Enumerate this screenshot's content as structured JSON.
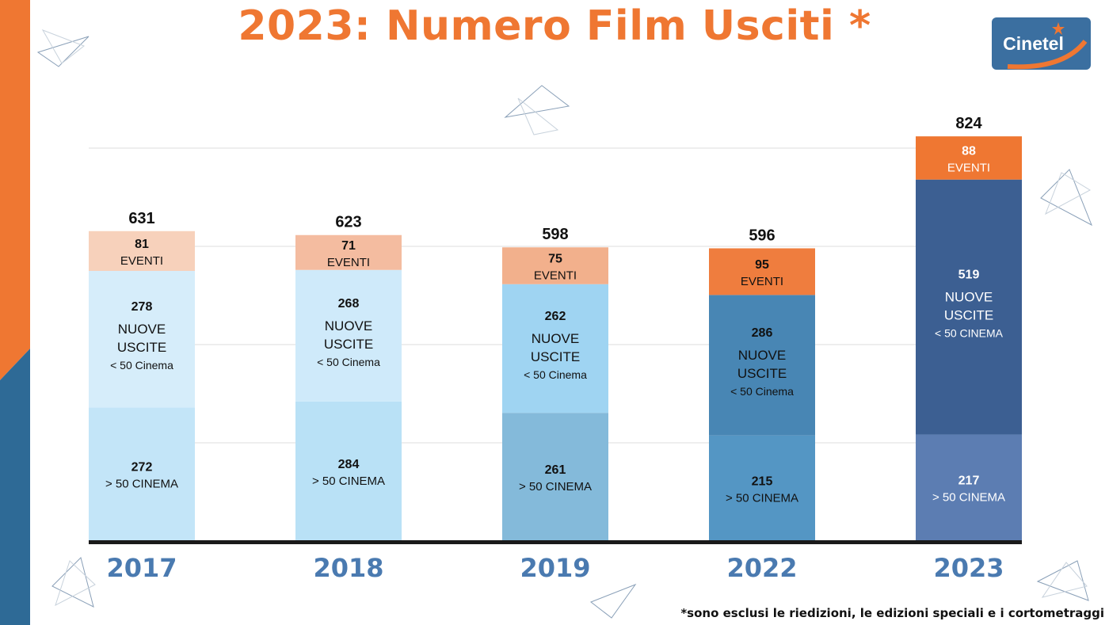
{
  "title": "2023: Numero Film Usciti *",
  "logo": {
    "text": "Cinetel"
  },
  "footnote": "*sono esclusi le riedizioni, le edizioni speciali e i cortometraggi",
  "colors": {
    "accent_orange": "#ef7732",
    "accent_blue": "#2e6a96",
    "year_label": "#4a7ab0",
    "baseline": "#1a1a1a"
  },
  "chart_data": {
    "type": "bar",
    "stacked": true,
    "categories": [
      "2017",
      "2018",
      "2019",
      "2022",
      "2023"
    ],
    "totals": [
      "631",
      "623",
      "598",
      "596",
      "824"
    ],
    "ylim": [
      0,
      850
    ],
    "grid": true,
    "series": [
      {
        "key": "over50",
        "values": [
          272,
          284,
          261,
          215,
          217
        ],
        "label_text": [
          "> 50 CINEMA",
          "> 50 CINEMA",
          "> 50 CINEMA",
          "> 50 CINEMA",
          "> 50 CINEMA"
        ],
        "colors": [
          "#c3e5f8",
          "#b9e1f6",
          "#84bada",
          "#5496c4",
          "#5c7db2"
        ]
      },
      {
        "key": "nuove",
        "values": [
          278,
          268,
          262,
          286,
          519
        ],
        "label_text": [
          "NUOVE|USCITE|< 50 Cinema",
          "NUOVE|USCITE|< 50 Cinema",
          "NUOVE|USCITE|< 50 Cinema",
          "NUOVE|USCITE|< 50 Cinema",
          "NUOVE|USCITE|< 50 CINEMA"
        ],
        "colors": [
          "#d6edfa",
          "#cfeafa",
          "#9fd4f2",
          "#4886b4",
          "#3c5f92"
        ]
      },
      {
        "key": "eventi",
        "values": [
          81,
          71,
          75,
          95,
          88
        ],
        "label_text": [
          "EVENTI",
          "EVENTI",
          "EVENTI",
          "EVENTI",
          "EVENTI"
        ],
        "colors": [
          "#f7d1bb",
          "#f4bca0",
          "#f2b08c",
          "#ef7d3e",
          "#ef7732"
        ]
      }
    ]
  }
}
